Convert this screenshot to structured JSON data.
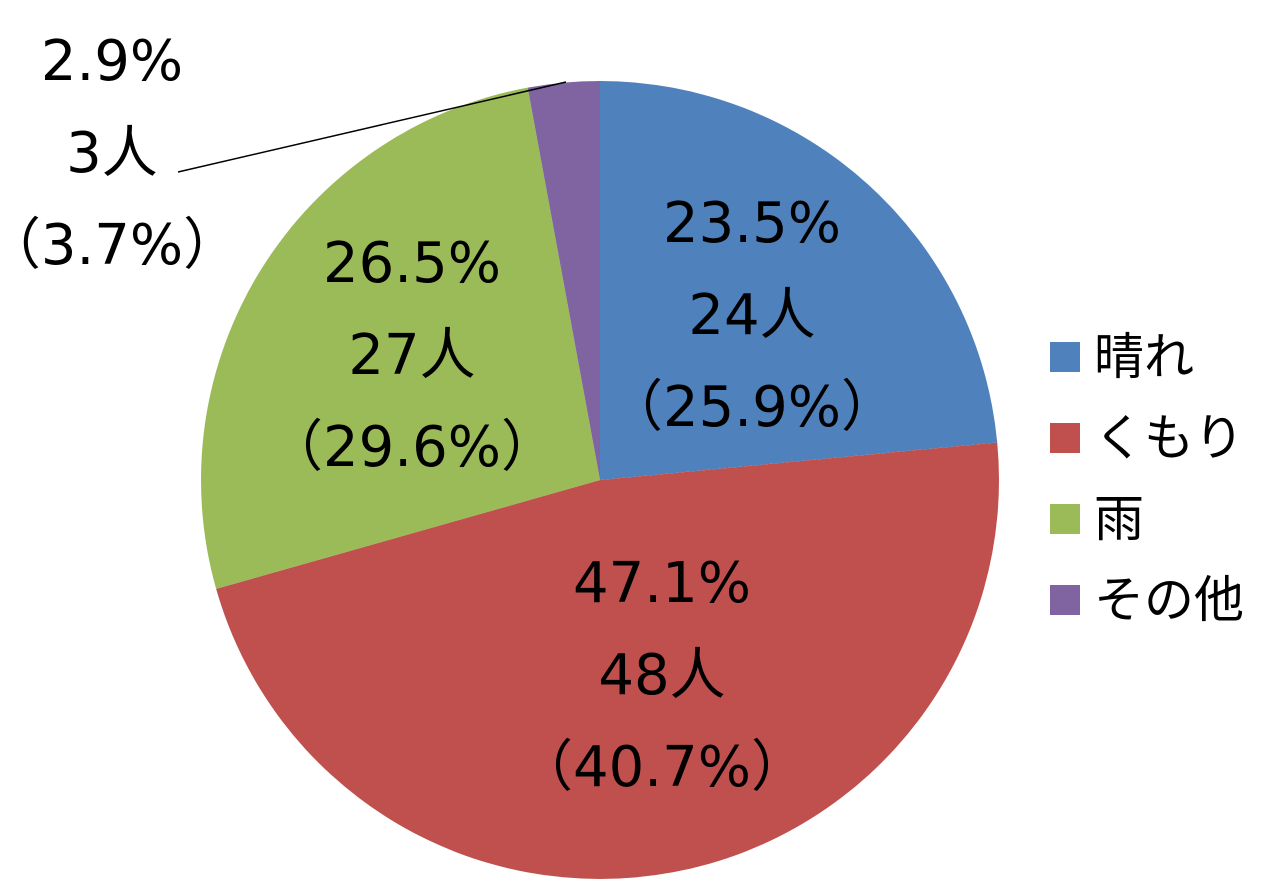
{
  "chart_data": {
    "type": "pie",
    "categories": [
      "晴れ",
      "くもり",
      "雨",
      "その他"
    ],
    "values": [
      23.5,
      47.1,
      26.5,
      2.9
    ],
    "counts": [
      24,
      48,
      27,
      3
    ],
    "count_unit": "人",
    "title": "",
    "legend_position": "right",
    "colors": [
      "#4F81BD",
      "#C0504D",
      "#9BBB59",
      "#8064A2"
    ],
    "data_labels": [
      {
        "percent": "23.5%",
        "count": "24人",
        "secondary": "（25.9%）"
      },
      {
        "percent": "47.1%",
        "count": "48人",
        "secondary": "（40.7%）"
      },
      {
        "percent": "26.5%",
        "count": "27人",
        "secondary": "（29.6%）"
      },
      {
        "percent": "2.9%",
        "count": "3人",
        "secondary": "（3.7%）"
      }
    ]
  }
}
